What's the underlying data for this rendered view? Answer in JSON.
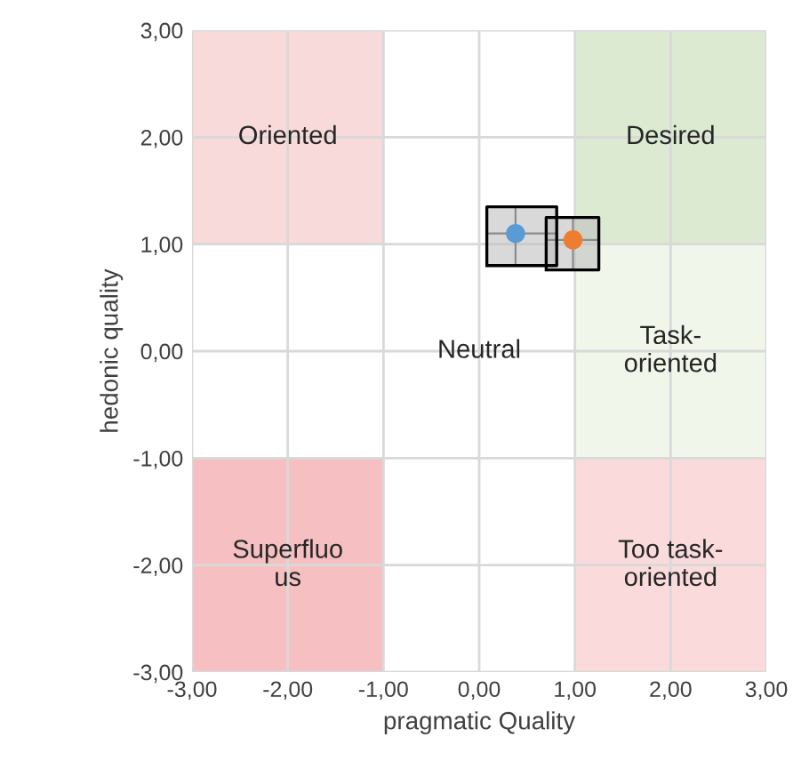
{
  "chart_data": {
    "type": "scatter",
    "xlabel": "pragmatic Quality",
    "ylabel": "hedonic quality",
    "series": [
      {
        "type": "bar",
        "x": [
          -2,
          2
        ],
        "base": [
          1,
          1
        ],
        "values": [
          2,
          2
        ],
        "colors": [
          "#f8d3d4",
          "#d5e6c8"
        ],
        "value_labels": [
          "Oriented",
          "Desired"
        ]
      },
      {
        "type": "bar",
        "x": [
          2
        ],
        "base": [
          -1
        ],
        "values": [
          2
        ],
        "colors": [
          "#eef5e8"
        ],
        "value_labels": [
          "Task-\noriented"
        ]
      },
      {
        "type": "bar",
        "x": [
          -2,
          2
        ],
        "base": [
          -3,
          -3
        ],
        "values": [
          2,
          2
        ],
        "colors": [
          "#f4b5b8",
          "#f9d4d5"
        ],
        "value_labels": [
          "Superfluo\nus",
          "Too task-\noriented"
        ]
      },
      {
        "color": "#5b9bd5",
        "x": [
          0.38
        ],
        "values": [
          1.1
        ],
        "errors": [
          [
            0.8,
            1.35
          ]
        ],
        "xerrors": [
          [
            0.08,
            0.81
          ]
        ]
      },
      {
        "color": "#ed7d31",
        "x": [
          0.98
        ],
        "values": [
          1.04
        ],
        "errors": [
          [
            0.76,
            1.25
          ]
        ],
        "xerrors": [
          [
            0.7,
            1.25
          ]
        ]
      }
    ],
    "annotations": [
      "Neutral"
    ],
    "marker": "circle",
    "grid": true,
    "xlim": [
      -3,
      3
    ],
    "ylim": [
      -3,
      3
    ],
    "xticks": [
      {
        "value": -3,
        "label": "-3,00"
      },
      {
        "value": -2,
        "label": "-2,00"
      },
      {
        "value": -1,
        "label": "-1,00"
      },
      {
        "value": 0,
        "label": "0,00"
      },
      {
        "value": 1,
        "label": "1,00"
      },
      {
        "value": 2,
        "label": "2,00"
      },
      {
        "value": 3,
        "label": "3,00"
      }
    ],
    "yticks": [
      {
        "value": -3,
        "label": "-3,00"
      },
      {
        "value": -2,
        "label": "-2,00"
      },
      {
        "value": -1,
        "label": "-1,00"
      },
      {
        "value": 0,
        "label": "0,00"
      },
      {
        "value": 1,
        "label": "1,00"
      },
      {
        "value": 2,
        "label": "2,00"
      },
      {
        "value": 3,
        "label": "3,00"
      }
    ]
  }
}
